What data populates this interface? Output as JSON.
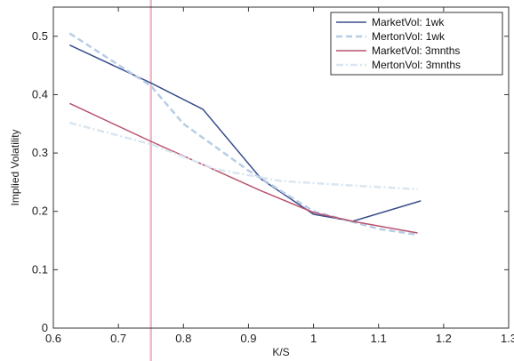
{
  "chart_data": {
    "type": "line",
    "title": "",
    "xlabel": "K/S",
    "ylabel": "Implied Volatility",
    "xlim": [
      0.6,
      1.3
    ],
    "ylim": [
      0,
      0.55
    ],
    "xticks": [
      "0.6",
      "0.7",
      "0.8",
      "0.9",
      "1",
      "1.1",
      "1.2",
      "1.3"
    ],
    "yticks": [
      "0",
      "0.1",
      "0.2",
      "0.3",
      "0.4",
      "0.5"
    ],
    "grid": false,
    "legend_position": "top-right",
    "reference_line": {
      "x": 0.75,
      "color": "#e9a9ba"
    },
    "series": [
      {
        "name": "MarketVol: 1wk",
        "color": "#3b4f8c",
        "style": "solid",
        "x": [
          0.625,
          0.75,
          0.83,
          0.92,
          1.0,
          1.06,
          1.165
        ],
        "y": [
          0.485,
          0.42,
          0.375,
          0.255,
          0.195,
          0.183,
          0.218
        ]
      },
      {
        "name": "MertonVol: 1wk",
        "color": "#b7cde4",
        "style": "dashed",
        "x": [
          0.625,
          0.75,
          0.8,
          0.9,
          1.0,
          1.1,
          1.16
        ],
        "y": [
          0.505,
          0.415,
          0.35,
          0.27,
          0.2,
          0.17,
          0.16
        ]
      },
      {
        "name": "MarketVol: 3mnths",
        "color": "#b9546e",
        "style": "solid",
        "x": [
          0.625,
          0.75,
          0.83,
          0.92,
          1.0,
          1.06,
          1.16
        ],
        "y": [
          0.385,
          0.32,
          0.28,
          0.235,
          0.198,
          0.183,
          0.163
        ]
      },
      {
        "name": "MertonVol: 3mnths",
        "color": "#d9e6f1",
        "style": "dashdot",
        "x": [
          0.625,
          0.75,
          0.85,
          0.95,
          1.05,
          1.16
        ],
        "y": [
          0.352,
          0.315,
          0.272,
          0.252,
          0.245,
          0.238
        ]
      }
    ]
  }
}
